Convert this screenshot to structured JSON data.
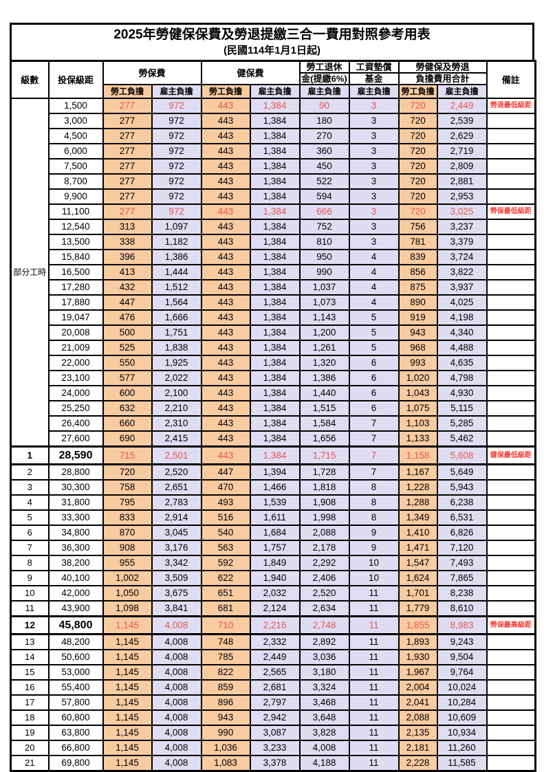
{
  "title": "2025年勞健保保費及勞退提繳三合一費用對照參考用表",
  "subtitle": "(民國114年1月1日起)",
  "header": {
    "level": "級數",
    "bracket": "投保級距",
    "labor_fee": "勞保費",
    "health_fee": "健保費",
    "pension_line1": "勞工退休",
    "pension_line2": "金(提繳6%)",
    "wage_fund_line1": "工資墊償",
    "wage_fund_line2": "基金",
    "total_line1": "勞健保及勞退",
    "total_line2": "負擔費用合計",
    "remark": "備註",
    "employee": "勞工負擔",
    "employer": "雇主負擔"
  },
  "part_time_label": "部分工時",
  "colors": {
    "employee_bg": "#F9CBA1",
    "employer_bg": "#DFDDF2",
    "red_value_text": "#E8544E",
    "red_remark_text": "#F93A32",
    "border": "#000000"
  },
  "rows": [
    {
      "level": "",
      "bracket": "1,500",
      "values": [
        "277",
        "972",
        "443",
        "1,384",
        "90",
        "3",
        "720",
        "2,449"
      ],
      "remark": "勞退最低級距",
      "red": true
    },
    {
      "level": "",
      "bracket": "3,000",
      "values": [
        "277",
        "972",
        "443",
        "1,384",
        "180",
        "3",
        "720",
        "2,539"
      ],
      "remark": ""
    },
    {
      "level": "",
      "bracket": "4,500",
      "values": [
        "277",
        "972",
        "443",
        "1,384",
        "270",
        "3",
        "720",
        "2,629"
      ],
      "remark": ""
    },
    {
      "level": "",
      "bracket": "6,000",
      "values": [
        "277",
        "972",
        "443",
        "1,384",
        "360",
        "3",
        "720",
        "2,719"
      ],
      "remark": ""
    },
    {
      "level": "",
      "bracket": "7,500",
      "values": [
        "277",
        "972",
        "443",
        "1,384",
        "450",
        "3",
        "720",
        "2,809"
      ],
      "remark": ""
    },
    {
      "level": "",
      "bracket": "8,700",
      "values": [
        "277",
        "972",
        "443",
        "1,384",
        "522",
        "3",
        "720",
        "2,881"
      ],
      "remark": ""
    },
    {
      "level": "",
      "bracket": "9,900",
      "values": [
        "277",
        "972",
        "443",
        "1,384",
        "594",
        "3",
        "720",
        "2,953"
      ],
      "remark": ""
    },
    {
      "level": "",
      "bracket": "11,100",
      "values": [
        "277",
        "972",
        "443",
        "1,384",
        "666",
        "3",
        "720",
        "3,025"
      ],
      "remark": "勞保最低級距",
      "red": true
    },
    {
      "level": "",
      "bracket": "12,540",
      "values": [
        "313",
        "1,097",
        "443",
        "1,384",
        "752",
        "3",
        "756",
        "3,237"
      ],
      "remark": ""
    },
    {
      "level": "",
      "bracket": "13,500",
      "values": [
        "338",
        "1,182",
        "443",
        "1,384",
        "810",
        "3",
        "781",
        "3,379"
      ],
      "remark": ""
    },
    {
      "level": "",
      "bracket": "15,840",
      "values": [
        "396",
        "1,386",
        "443",
        "1,384",
        "950",
        "4",
        "839",
        "3,724"
      ],
      "remark": ""
    },
    {
      "level": "",
      "bracket": "16,500",
      "values": [
        "413",
        "1,444",
        "443",
        "1,384",
        "990",
        "4",
        "856",
        "3,822"
      ],
      "remark": ""
    },
    {
      "level": "",
      "bracket": "17,280",
      "values": [
        "432",
        "1,512",
        "443",
        "1,384",
        "1,037",
        "4",
        "875",
        "3,937"
      ],
      "remark": ""
    },
    {
      "level": "",
      "bracket": "17,880",
      "values": [
        "447",
        "1,564",
        "443",
        "1,384",
        "1,073",
        "4",
        "890",
        "4,025"
      ],
      "remark": ""
    },
    {
      "level": "",
      "bracket": "19,047",
      "values": [
        "476",
        "1,666",
        "443",
        "1,384",
        "1,143",
        "5",
        "919",
        "4,198"
      ],
      "remark": ""
    },
    {
      "level": "",
      "bracket": "20,008",
      "values": [
        "500",
        "1,751",
        "443",
        "1,384",
        "1,200",
        "5",
        "943",
        "4,340"
      ],
      "remark": ""
    },
    {
      "level": "",
      "bracket": "21,009",
      "values": [
        "525",
        "1,838",
        "443",
        "1,384",
        "1,261",
        "5",
        "968",
        "4,488"
      ],
      "remark": ""
    },
    {
      "level": "",
      "bracket": "22,000",
      "values": [
        "550",
        "1,925",
        "443",
        "1,384",
        "1,320",
        "6",
        "993",
        "4,635"
      ],
      "remark": ""
    },
    {
      "level": "",
      "bracket": "23,100",
      "values": [
        "577",
        "2,022",
        "443",
        "1,384",
        "1,386",
        "6",
        "1,020",
        "4,798"
      ],
      "remark": ""
    },
    {
      "level": "",
      "bracket": "24,000",
      "values": [
        "600",
        "2,100",
        "443",
        "1,384",
        "1,440",
        "6",
        "1,043",
        "4,930"
      ],
      "remark": ""
    },
    {
      "level": "",
      "bracket": "25,250",
      "values": [
        "632",
        "2,210",
        "443",
        "1,384",
        "1,515",
        "6",
        "1,075",
        "5,115"
      ],
      "remark": ""
    },
    {
      "level": "",
      "bracket": "26,400",
      "values": [
        "660",
        "2,310",
        "443",
        "1,384",
        "1,584",
        "7",
        "1,103",
        "5,285"
      ],
      "remark": ""
    },
    {
      "level": "",
      "bracket": "27,600",
      "values": [
        "690",
        "2,415",
        "443",
        "1,384",
        "1,656",
        "7",
        "1,133",
        "5,462"
      ],
      "remark": ""
    },
    {
      "level": "1",
      "bracket": "28,590",
      "values": [
        "715",
        "2,501",
        "443",
        "1,384",
        "1,715",
        "7",
        "1,158",
        "5,608"
      ],
      "remark": "健保最低級距",
      "red": true,
      "bold": true
    },
    {
      "level": "2",
      "bracket": "28,800",
      "values": [
        "720",
        "2,520",
        "447",
        "1,394",
        "1,728",
        "7",
        "1,167",
        "5,649"
      ],
      "remark": ""
    },
    {
      "level": "3",
      "bracket": "30,300",
      "values": [
        "758",
        "2,651",
        "470",
        "1,466",
        "1,818",
        "8",
        "1,228",
        "5,943"
      ],
      "remark": ""
    },
    {
      "level": "4",
      "bracket": "31,800",
      "values": [
        "795",
        "2,783",
        "493",
        "1,539",
        "1,908",
        "8",
        "1,288",
        "6,238"
      ],
      "remark": ""
    },
    {
      "level": "5",
      "bracket": "33,300",
      "values": [
        "833",
        "2,914",
        "516",
        "1,611",
        "1,998",
        "8",
        "1,349",
        "6,531"
      ],
      "remark": ""
    },
    {
      "level": "6",
      "bracket": "34,800",
      "values": [
        "870",
        "3,045",
        "540",
        "1,684",
        "2,088",
        "9",
        "1,410",
        "6,826"
      ],
      "remark": ""
    },
    {
      "level": "7",
      "bracket": "36,300",
      "values": [
        "908",
        "3,176",
        "563",
        "1,757",
        "2,178",
        "9",
        "1,471",
        "7,120"
      ],
      "remark": ""
    },
    {
      "level": "8",
      "bracket": "38,200",
      "values": [
        "955",
        "3,342",
        "592",
        "1,849",
        "2,292",
        "10",
        "1,547",
        "7,493"
      ],
      "remark": ""
    },
    {
      "level": "9",
      "bracket": "40,100",
      "values": [
        "1,002",
        "3,509",
        "622",
        "1,940",
        "2,406",
        "10",
        "1,624",
        "7,865"
      ],
      "remark": ""
    },
    {
      "level": "10",
      "bracket": "42,000",
      "values": [
        "1,050",
        "3,675",
        "651",
        "2,032",
        "2,520",
        "11",
        "1,701",
        "8,238"
      ],
      "remark": ""
    },
    {
      "level": "11",
      "bracket": "43,900",
      "values": [
        "1,098",
        "3,841",
        "681",
        "2,124",
        "2,634",
        "11",
        "1,779",
        "8,610"
      ],
      "remark": ""
    },
    {
      "level": "12",
      "bracket": "45,800",
      "values": [
        "1,145",
        "4,008",
        "710",
        "2,216",
        "2,748",
        "11",
        "1,855",
        "8,983"
      ],
      "remark": "勞保最高級距",
      "red": true,
      "bold": true
    },
    {
      "level": "13",
      "bracket": "48,200",
      "values": [
        "1,145",
        "4,008",
        "748",
        "2,332",
        "2,892",
        "11",
        "1,893",
        "9,243"
      ],
      "remark": ""
    },
    {
      "level": "14",
      "bracket": "50,600",
      "values": [
        "1,145",
        "4,008",
        "785",
        "2,449",
        "3,036",
        "11",
        "1,930",
        "9,504"
      ],
      "remark": ""
    },
    {
      "level": "15",
      "bracket": "53,000",
      "values": [
        "1,145",
        "4,008",
        "822",
        "2,565",
        "3,180",
        "11",
        "1,967",
        "9,764"
      ],
      "remark": ""
    },
    {
      "level": "16",
      "bracket": "55,400",
      "values": [
        "1,145",
        "4,008",
        "859",
        "2,681",
        "3,324",
        "11",
        "2,004",
        "10,024"
      ],
      "remark": ""
    },
    {
      "level": "17",
      "bracket": "57,800",
      "values": [
        "1,145",
        "4,008",
        "896",
        "2,797",
        "3,468",
        "11",
        "2,041",
        "10,284"
      ],
      "remark": ""
    },
    {
      "level": "18",
      "bracket": "60,800",
      "values": [
        "1,145",
        "4,008",
        "943",
        "2,942",
        "3,648",
        "11",
        "2,088",
        "10,609"
      ],
      "remark": ""
    },
    {
      "level": "19",
      "bracket": "63,800",
      "values": [
        "1,145",
        "4,008",
        "990",
        "3,087",
        "3,828",
        "11",
        "2,135",
        "10,934"
      ],
      "remark": ""
    },
    {
      "level": "20",
      "bracket": "66,800",
      "values": [
        "1,145",
        "4,008",
        "1,036",
        "3,233",
        "4,008",
        "11",
        "2,181",
        "11,260"
      ],
      "remark": ""
    },
    {
      "level": "21",
      "bracket": "69,800",
      "values": [
        "1,145",
        "4,008",
        "1,083",
        "3,378",
        "4,188",
        "11",
        "2,228",
        "11,585"
      ],
      "remark": ""
    }
  ]
}
